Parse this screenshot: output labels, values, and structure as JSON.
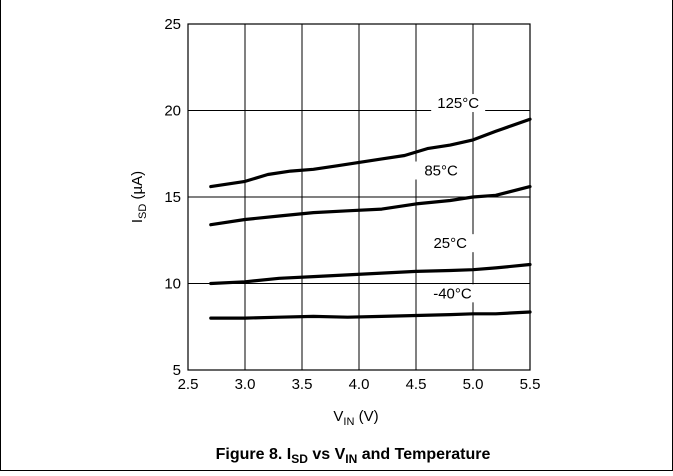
{
  "chart_data": {
    "type": "line",
    "title": "",
    "xlabel": {
      "main": "V",
      "sub": "IN",
      "unit": " (V)"
    },
    "ylabel": {
      "main": "I",
      "sub": "SD",
      "unit": " (µA)"
    },
    "xlim": [
      2.5,
      5.5
    ],
    "ylim": [
      5,
      25
    ],
    "xticks": [
      2.5,
      3.0,
      3.5,
      4.0,
      4.5,
      5.0,
      5.5
    ],
    "xtick_labels": [
      "2.5",
      "3.0",
      "3.5",
      "4.0",
      "4.5",
      "5.0",
      "5.5"
    ],
    "yticks": [
      5,
      10,
      15,
      20,
      25
    ],
    "ytick_labels": [
      "5",
      "10",
      "15",
      "20",
      "25"
    ],
    "grid": true,
    "series": [
      {
        "name": "125°C",
        "x": [
          2.7,
          3.0,
          3.2,
          3.4,
          3.6,
          3.8,
          4.0,
          4.2,
          4.4,
          4.6,
          4.8,
          5.0,
          5.2,
          5.5
        ],
        "y": [
          15.6,
          15.9,
          16.3,
          16.5,
          16.6,
          16.8,
          17.0,
          17.2,
          17.4,
          17.8,
          18.0,
          18.3,
          18.8,
          19.5
        ]
      },
      {
        "name": "85°C",
        "x": [
          2.7,
          3.0,
          3.3,
          3.6,
          3.9,
          4.2,
          4.5,
          4.8,
          5.0,
          5.2,
          5.5
        ],
        "y": [
          13.4,
          13.7,
          13.9,
          14.1,
          14.2,
          14.3,
          14.6,
          14.8,
          15.0,
          15.1,
          15.6
        ]
      },
      {
        "name": "25°C",
        "x": [
          2.7,
          3.0,
          3.3,
          3.6,
          3.9,
          4.2,
          4.5,
          4.8,
          5.0,
          5.2,
          5.5
        ],
        "y": [
          10.0,
          10.1,
          10.3,
          10.4,
          10.5,
          10.6,
          10.7,
          10.75,
          10.8,
          10.9,
          11.1
        ]
      },
      {
        "name": "-40°C",
        "x": [
          2.7,
          3.0,
          3.3,
          3.6,
          3.9,
          4.2,
          4.5,
          4.8,
          5.0,
          5.2,
          5.5
        ],
        "y": [
          8.0,
          8.0,
          8.05,
          8.1,
          8.05,
          8.1,
          8.15,
          8.2,
          8.25,
          8.25,
          8.35
        ]
      }
    ]
  },
  "caption": {
    "prefix": "Figure 8. I",
    "sub1": "SD",
    "mid": " vs V",
    "sub2": "IN",
    "suffix": " and Temperature"
  }
}
